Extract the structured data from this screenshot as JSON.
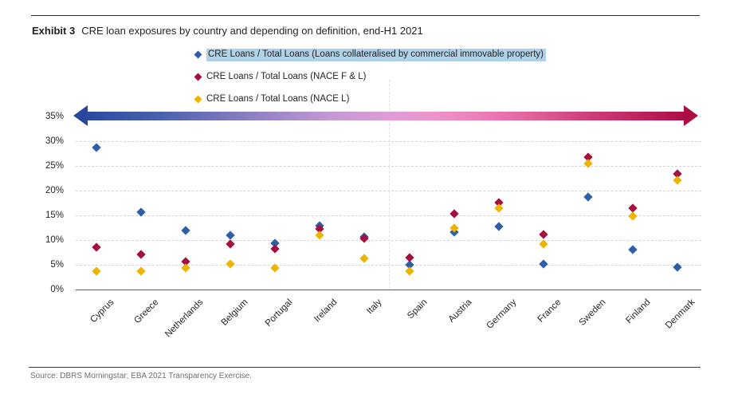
{
  "header": {
    "exhibit_label": "Exhibit 3",
    "title": "CRE loan exposures by country and depending on definition, end-H1 2021"
  },
  "footer": {
    "source": "Source: DBRS Morningstar; EBA 2021 Transparency Exercise."
  },
  "colors": {
    "series_blue": "#2e5ea6",
    "series_red": "#a40f3f",
    "series_yellow": "#eeb500",
    "legend_highlight": "#aed2e8",
    "arrow_gradient_left": "#27489d",
    "arrow_gradient_mid": "#e59cd2",
    "arrow_gradient_right": "#ad0c44",
    "gridline": "#d4d4d4"
  },
  "chart_data": {
    "type": "scatter",
    "title": "CRE loan exposures by country and depending on definition, end-H1 2021",
    "categories": [
      "Cyprus",
      "Greece",
      "Netherlands",
      "Belgium",
      "Portugal",
      "Ireland",
      "Italy",
      "Spain",
      "Austria",
      "Germany",
      "France",
      "Sweden",
      "Finland",
      "Denmark"
    ],
    "series": [
      {
        "name": "CRE Loans / Total Loans (Loans collateralised by commercial immovable property)",
        "color": "#2e5ea6",
        "highlighted_in_legend": true,
        "values": [
          28.7,
          15.6,
          11.9,
          11.0,
          9.4,
          12.9,
          10.7,
          5.0,
          11.7,
          12.8,
          5.2,
          18.7,
          8.1,
          4.6
        ]
      },
      {
        "name": "CRE Loans / Total Loans (NACE F & L)",
        "color": "#a40f3f",
        "highlighted_in_legend": false,
        "values": [
          8.6,
          7.2,
          5.7,
          9.2,
          8.3,
          12.2,
          10.4,
          6.5,
          15.4,
          17.5,
          11.2,
          26.7,
          16.4,
          23.3
        ]
      },
      {
        "name": "CRE Loans / Total Loans (NACE L)",
        "color": "#eeb500",
        "highlighted_in_legend": false,
        "values": [
          3.8,
          3.7,
          4.4,
          5.2,
          4.4,
          11.0,
          6.3,
          3.8,
          12.4,
          16.5,
          9.2,
          25.4,
          14.8,
          22.1
        ]
      }
    ],
    "xlabel": "",
    "ylabel": "",
    "ylim": [
      0,
      35
    ],
    "ytick_step": 5,
    "ytick_suffix": "%",
    "grid": "horizontal-dashed",
    "legend_position": "top-center",
    "marker_shape": "diamond",
    "annotations": [
      {
        "type": "double-headed-gradient-arrow",
        "at_y_percent": 35,
        "direction": "horizontal"
      }
    ]
  }
}
